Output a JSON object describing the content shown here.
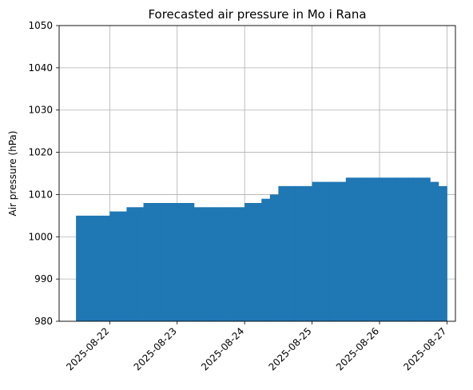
{
  "chart_data": {
    "type": "area",
    "title": "Forecasted air pressure in Mo i Rana",
    "xlabel": "",
    "ylabel": "Air pressure (hPa)",
    "ylim": [
      980,
      1050
    ],
    "xlim": [
      "2025-08-21T06:00",
      "2025-08-27T03:00"
    ],
    "y_ticks": [
      980,
      990,
      1000,
      1010,
      1020,
      1030,
      1040,
      1050
    ],
    "x_ticks": [
      "2025-08-22",
      "2025-08-23",
      "2025-08-24",
      "2025-08-25",
      "2025-08-26",
      "2025-08-27"
    ],
    "grid": true,
    "color": "#1f77b4",
    "series": [
      {
        "x": [
          "2025-08-21T12:00",
          "2025-08-21T18:00",
          "2025-08-22T00:00",
          "2025-08-22T06:00",
          "2025-08-22T12:00",
          "2025-08-22T18:00",
          "2025-08-23T00:00",
          "2025-08-23T06:00",
          "2025-08-23T12:00",
          "2025-08-23T18:00",
          "2025-08-24T00:00",
          "2025-08-24T06:00",
          "2025-08-24T09:00",
          "2025-08-24T12:00",
          "2025-08-24T18:00",
          "2025-08-25T00:00",
          "2025-08-25T06:00",
          "2025-08-25T12:00",
          "2025-08-25T18:00",
          "2025-08-26T00:00",
          "2025-08-26T06:00",
          "2025-08-26T12:00",
          "2025-08-26T18:00",
          "2025-08-26T21:00",
          "2025-08-27T00:00"
        ],
        "values": [
          1005,
          1005,
          1006,
          1007,
          1008,
          1008,
          1008,
          1007,
          1007,
          1007,
          1008,
          1009,
          1010,
          1012,
          1012,
          1013,
          1013,
          1014,
          1014,
          1014,
          1014,
          1014,
          1013,
          1012,
          1012
        ]
      }
    ]
  }
}
